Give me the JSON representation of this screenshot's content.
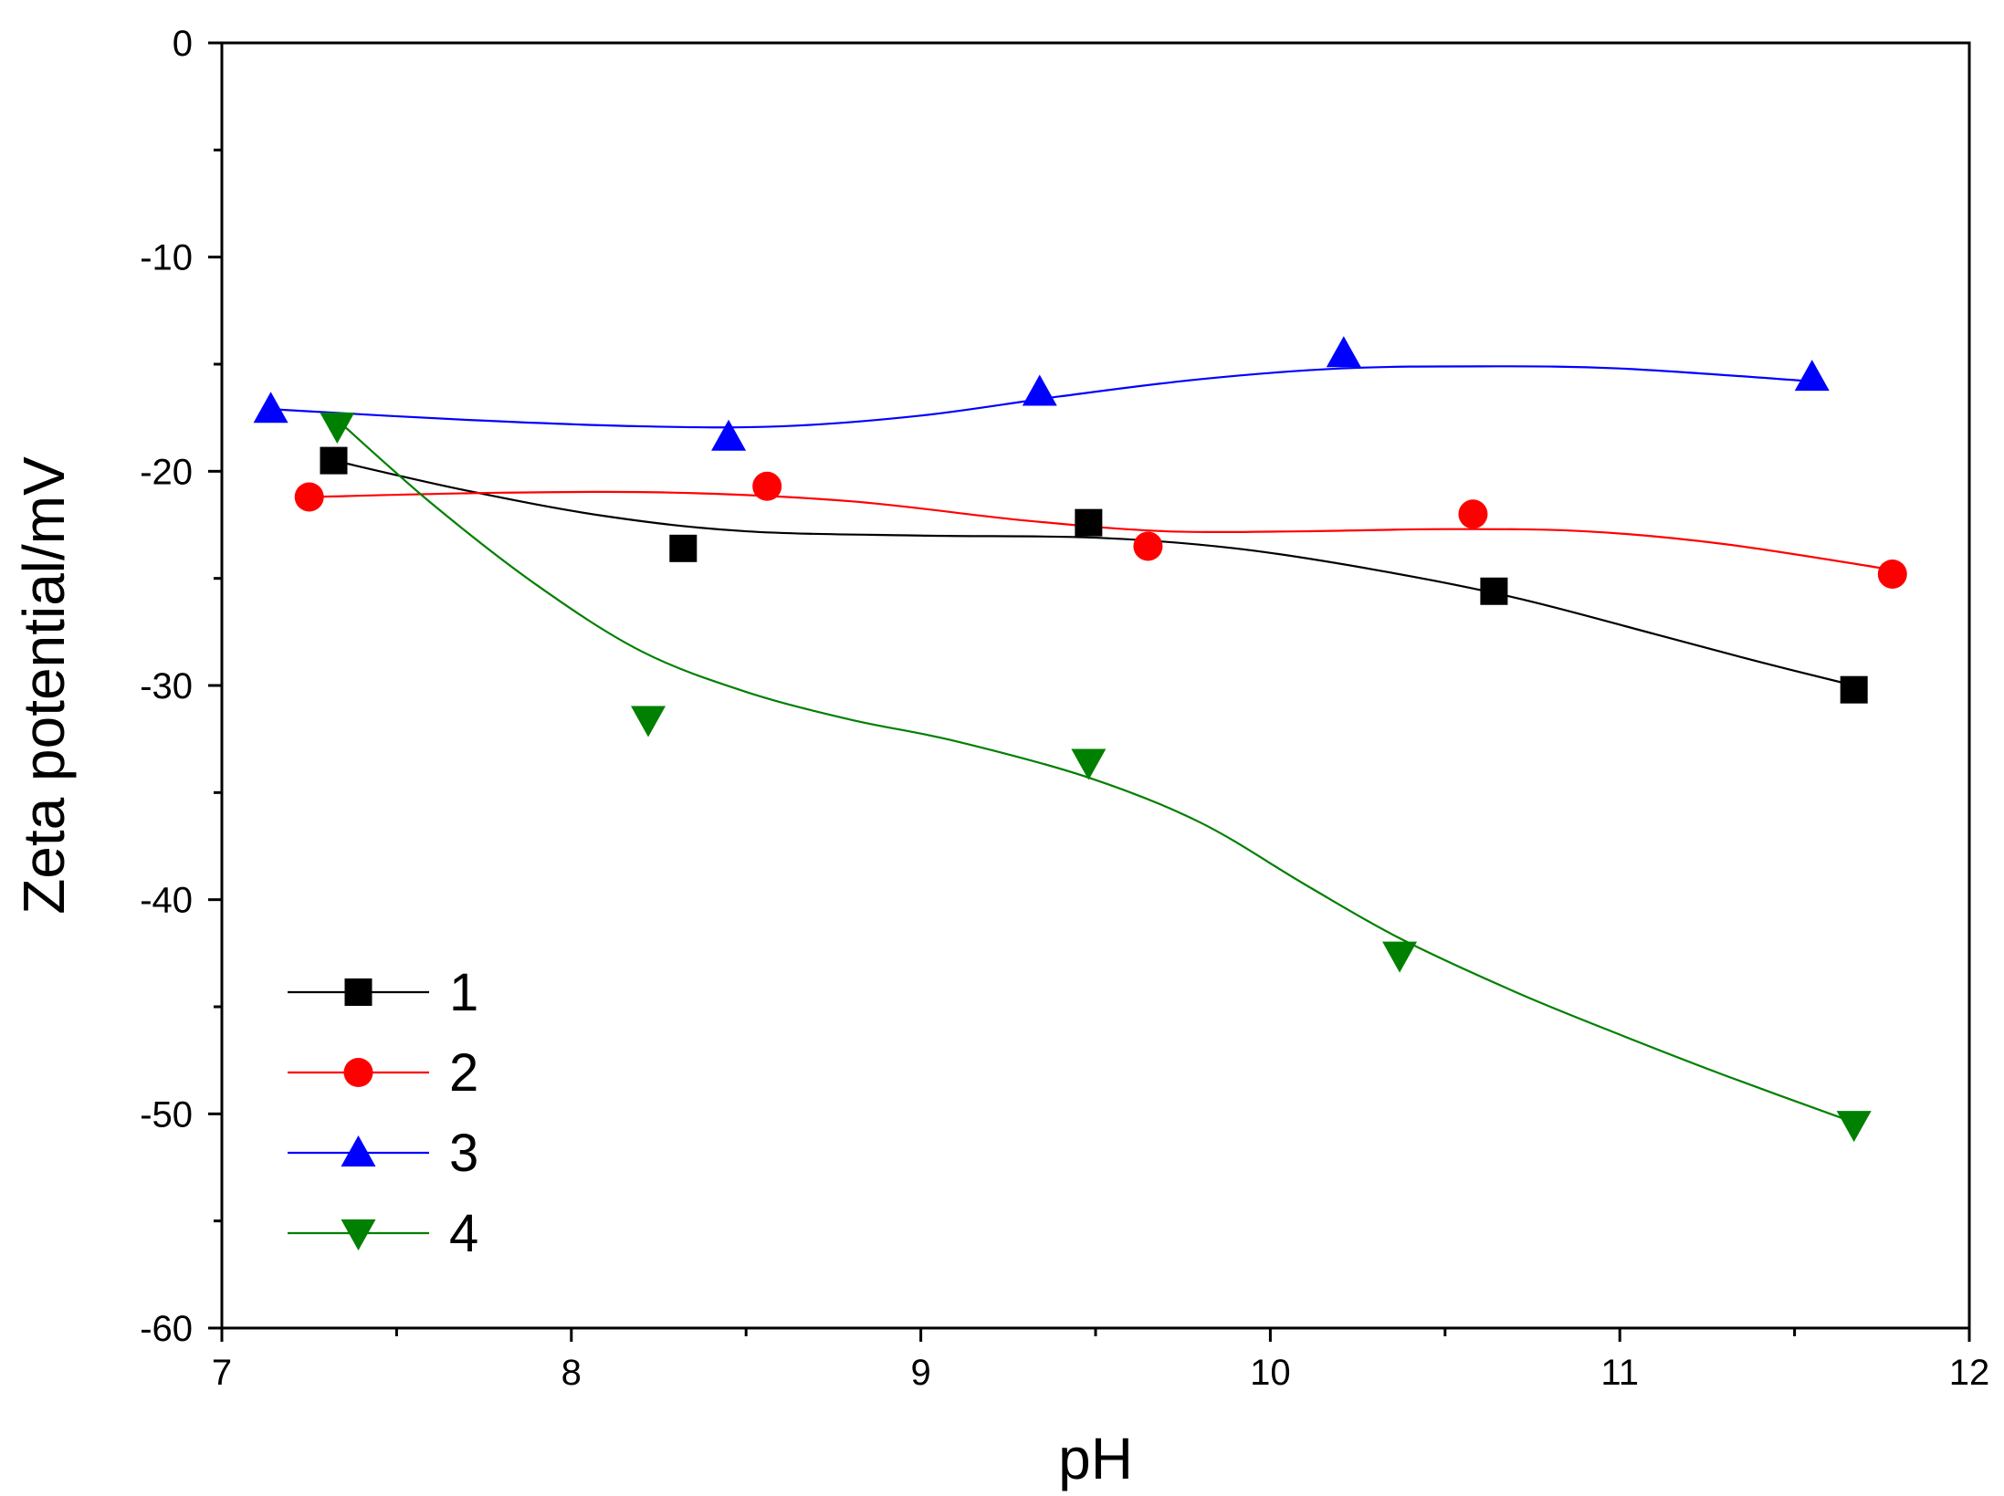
{
  "chart_data": {
    "type": "line",
    "title": "",
    "xlabel": "pH",
    "ylabel": "Zeta potential/mV",
    "xlim": [
      7,
      12
    ],
    "ylim": [
      -60,
      0
    ],
    "xticks": [
      7,
      8,
      9,
      10,
      11,
      12
    ],
    "yticks": [
      0,
      -10,
      -20,
      -30,
      -40,
      -50,
      -60
    ],
    "xtick_labels": [
      "7",
      "8",
      "9",
      "10",
      "11",
      "12"
    ],
    "ytick_labels": [
      "0",
      "-10",
      "-20",
      "-30",
      "-40",
      "-50",
      "-60"
    ],
    "x_minor_step": 0.5,
    "y_minor_step": 5,
    "grid": false,
    "legend_position": "bottom-left",
    "series": [
      {
        "name": "1",
        "color": "#000000",
        "marker": "square",
        "points": [
          [
            7.32,
            -19.5
          ],
          [
            8.32,
            -23.6
          ],
          [
            9.48,
            -22.4
          ],
          [
            10.64,
            -25.6
          ],
          [
            11.67,
            -30.2
          ]
        ],
        "curve": [
          [
            7.32,
            -19.5
          ],
          [
            7.7,
            -20.9
          ],
          [
            8.1,
            -22.1
          ],
          [
            8.5,
            -22.8
          ],
          [
            9.0,
            -23.0
          ],
          [
            9.5,
            -23.1
          ],
          [
            9.9,
            -23.6
          ],
          [
            10.3,
            -24.6
          ],
          [
            10.7,
            -25.9
          ],
          [
            11.1,
            -27.6
          ],
          [
            11.4,
            -28.9
          ],
          [
            11.67,
            -30.0
          ]
        ]
      },
      {
        "name": "2",
        "color": "#ff0000",
        "marker": "circle",
        "points": [
          [
            7.25,
            -21.2
          ],
          [
            8.56,
            -20.7
          ],
          [
            9.65,
            -23.5
          ],
          [
            10.58,
            -22.0
          ],
          [
            11.78,
            -24.8
          ]
        ],
        "curve": [
          [
            7.25,
            -21.2
          ],
          [
            7.8,
            -21.0
          ],
          [
            8.3,
            -21.0
          ],
          [
            8.8,
            -21.4
          ],
          [
            9.3,
            -22.3
          ],
          [
            9.7,
            -22.8
          ],
          [
            10.1,
            -22.8
          ],
          [
            10.5,
            -22.7
          ],
          [
            10.9,
            -22.8
          ],
          [
            11.3,
            -23.4
          ],
          [
            11.78,
            -24.6
          ]
        ]
      },
      {
        "name": "3",
        "color": "#0000ff",
        "marker": "triangle-up",
        "points": [
          [
            7.14,
            -17.1
          ],
          [
            8.45,
            -18.4
          ],
          [
            9.34,
            -16.3
          ],
          [
            10.21,
            -14.5
          ],
          [
            11.55,
            -15.6
          ]
        ],
        "curve": [
          [
            7.14,
            -17.1
          ],
          [
            7.7,
            -17.6
          ],
          [
            8.2,
            -17.9
          ],
          [
            8.6,
            -17.9
          ],
          [
            9.0,
            -17.4
          ],
          [
            9.4,
            -16.5
          ],
          [
            9.8,
            -15.7
          ],
          [
            10.2,
            -15.2
          ],
          [
            10.6,
            -15.1
          ],
          [
            11.0,
            -15.2
          ],
          [
            11.55,
            -15.8
          ]
        ]
      },
      {
        "name": "4",
        "color": "#008000",
        "marker": "triangle-down",
        "points": [
          [
            7.33,
            -17.9
          ],
          [
            8.22,
            -31.6
          ],
          [
            9.48,
            -33.6
          ],
          [
            10.37,
            -42.6
          ],
          [
            11.67,
            -50.5
          ]
        ],
        "curve": [
          [
            7.33,
            -17.6
          ],
          [
            7.6,
            -21.5
          ],
          [
            7.9,
            -25.3
          ],
          [
            8.2,
            -28.4
          ],
          [
            8.5,
            -30.3
          ],
          [
            8.8,
            -31.6
          ],
          [
            9.1,
            -32.6
          ],
          [
            9.48,
            -34.3
          ],
          [
            9.8,
            -36.4
          ],
          [
            10.1,
            -39.3
          ],
          [
            10.37,
            -41.8
          ],
          [
            10.7,
            -44.3
          ],
          [
            11.0,
            -46.3
          ],
          [
            11.3,
            -48.2
          ],
          [
            11.67,
            -50.4
          ]
        ]
      }
    ]
  }
}
